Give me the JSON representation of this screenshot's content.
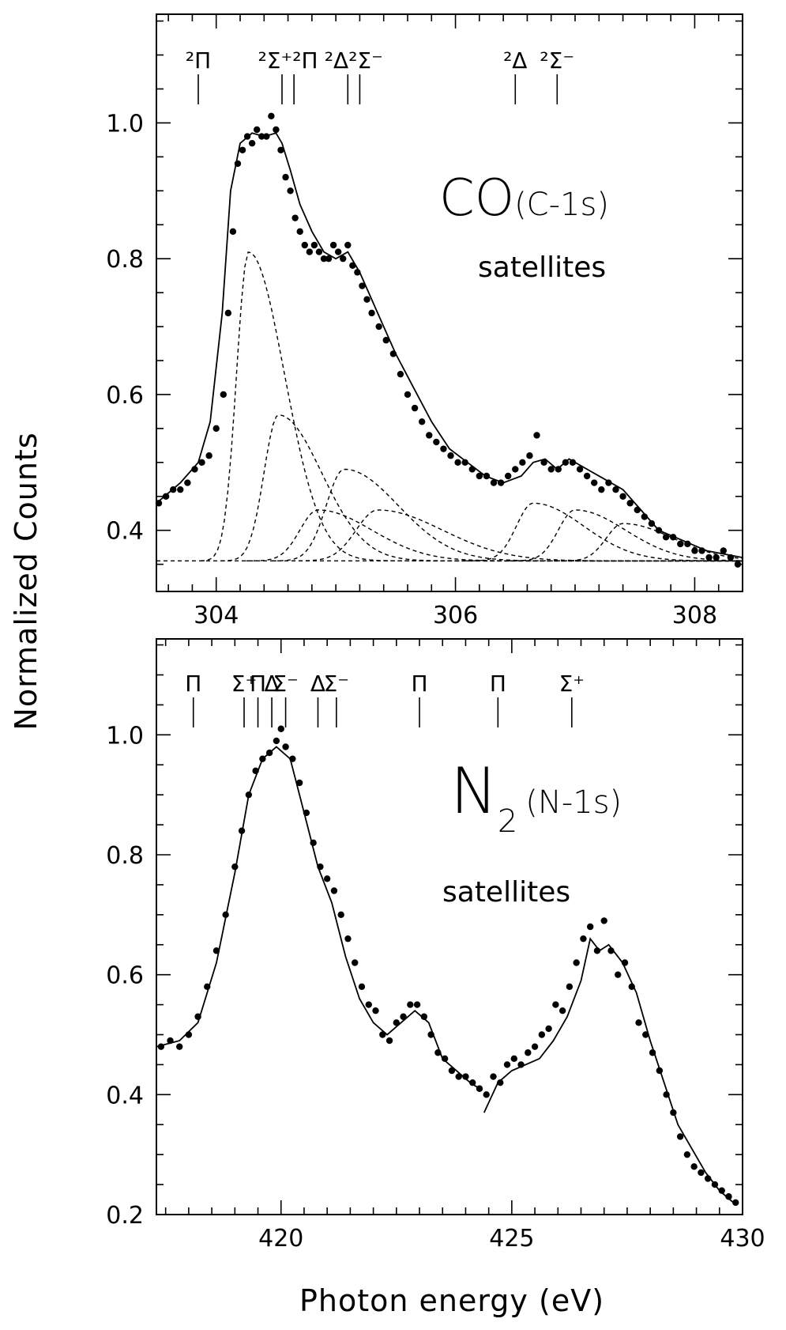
{
  "figure": {
    "ylabel": "Normalized Counts",
    "xlabel": "Photon energy (eV)"
  },
  "chart_data": [
    {
      "type": "scatter",
      "panel": "top",
      "molecule_main": "CO",
      "molecule_sub": "(C-1s)",
      "subtitle": "satellites",
      "xlim": [
        303.5,
        308.4
      ],
      "ylim": [
        0.31,
        1.16
      ],
      "xticks": [
        304,
        306,
        308
      ],
      "yticks": [
        0.4,
        0.6,
        0.8,
        1.0
      ],
      "baseline": 0.355,
      "state_markers": [
        {
          "label": "²Π",
          "x": 303.85
        },
        {
          "label": "²Σ⁺²Π",
          "x": [
            304.55,
            304.65
          ]
        },
        {
          "label": "²Δ²Σ⁻",
          "x": [
            305.1,
            305.2
          ]
        },
        {
          "label": "²Δ",
          "x": 306.5
        },
        {
          "label": "²Σ⁻",
          "x": 306.85
        }
      ],
      "fit_curve": {
        "x": [
          303.5,
          303.7,
          303.85,
          303.95,
          304.05,
          304.12,
          304.2,
          304.3,
          304.4,
          304.5,
          304.55,
          304.62,
          304.7,
          304.8,
          304.9,
          305.0,
          305.1,
          305.2,
          305.35,
          305.5,
          305.65,
          305.8,
          305.95,
          306.1,
          306.25,
          306.4,
          306.55,
          306.65,
          306.75,
          306.85,
          306.95,
          307.1,
          307.25,
          307.4,
          307.55,
          307.7,
          307.9,
          308.1,
          308.4
        ],
        "y": [
          0.44,
          0.47,
          0.5,
          0.56,
          0.72,
          0.9,
          0.97,
          0.985,
          0.98,
          0.985,
          0.97,
          0.93,
          0.88,
          0.84,
          0.81,
          0.8,
          0.81,
          0.78,
          0.72,
          0.66,
          0.61,
          0.56,
          0.52,
          0.5,
          0.48,
          0.47,
          0.48,
          0.5,
          0.505,
          0.49,
          0.505,
          0.49,
          0.475,
          0.46,
          0.43,
          0.4,
          0.385,
          0.37,
          0.36
        ]
      },
      "components": [
        {
          "center": 304.27,
          "peak": 0.81,
          "width": 0.1
        },
        {
          "center": 304.52,
          "peak": 0.57,
          "width": 0.12
        },
        {
          "center": 304.85,
          "peak": 0.43,
          "width": 0.15
        },
        {
          "center": 305.07,
          "peak": 0.49,
          "width": 0.15
        },
        {
          "center": 305.35,
          "peak": 0.43,
          "width": 0.18
        },
        {
          "center": 306.65,
          "peak": 0.44,
          "width": 0.14
        },
        {
          "center": 307.0,
          "peak": 0.43,
          "width": 0.14
        },
        {
          "center": 307.4,
          "peak": 0.41,
          "width": 0.14
        }
      ],
      "data_points": {
        "x": [
          303.52,
          303.58,
          303.64,
          303.7,
          303.76,
          303.82,
          303.88,
          303.94,
          304.0,
          304.06,
          304.1,
          304.14,
          304.18,
          304.22,
          304.26,
          304.3,
          304.34,
          304.38,
          304.42,
          304.46,
          304.5,
          304.54,
          304.58,
          304.62,
          304.66,
          304.7,
          304.74,
          304.78,
          304.82,
          304.86,
          304.9,
          304.94,
          304.98,
          305.02,
          305.06,
          305.1,
          305.14,
          305.18,
          305.22,
          305.26,
          305.3,
          305.36,
          305.42,
          305.48,
          305.54,
          305.6,
          305.66,
          305.72,
          305.78,
          305.84,
          305.9,
          305.96,
          306.02,
          306.08,
          306.14,
          306.2,
          306.26,
          306.32,
          306.38,
          306.44,
          306.5,
          306.56,
          306.62,
          306.68,
          306.74,
          306.8,
          306.86,
          306.92,
          306.98,
          307.04,
          307.1,
          307.16,
          307.22,
          307.28,
          307.34,
          307.4,
          307.46,
          307.52,
          307.58,
          307.64,
          307.7,
          307.76,
          307.82,
          307.88,
          307.94,
          308.0,
          308.06,
          308.12,
          308.18,
          308.24,
          308.3,
          308.36
        ],
        "y": [
          0.44,
          0.45,
          0.46,
          0.46,
          0.47,
          0.49,
          0.5,
          0.51,
          0.55,
          0.6,
          0.72,
          0.84,
          0.94,
          0.96,
          0.98,
          0.97,
          0.99,
          0.98,
          0.98,
          1.01,
          0.99,
          0.96,
          0.92,
          0.9,
          0.86,
          0.84,
          0.82,
          0.81,
          0.82,
          0.81,
          0.8,
          0.8,
          0.82,
          0.81,
          0.8,
          0.82,
          0.79,
          0.78,
          0.76,
          0.74,
          0.72,
          0.7,
          0.68,
          0.66,
          0.63,
          0.6,
          0.58,
          0.56,
          0.54,
          0.53,
          0.52,
          0.51,
          0.5,
          0.5,
          0.49,
          0.48,
          0.48,
          0.47,
          0.47,
          0.48,
          0.49,
          0.5,
          0.51,
          0.54,
          0.5,
          0.49,
          0.49,
          0.5,
          0.5,
          0.49,
          0.48,
          0.47,
          0.46,
          0.47,
          0.46,
          0.45,
          0.44,
          0.43,
          0.42,
          0.41,
          0.4,
          0.39,
          0.39,
          0.38,
          0.38,
          0.37,
          0.37,
          0.36,
          0.36,
          0.37,
          0.36,
          0.35
        ]
      }
    },
    {
      "type": "scatter",
      "panel": "bottom",
      "molecule_main": "N",
      "molecule_subscript": "2",
      "molecule_sub": "(N-1s)",
      "subtitle": "satellites",
      "xlim": [
        417.3,
        430
      ],
      "ylim": [
        0.2,
        1.16
      ],
      "xticks": [
        420,
        425,
        430
      ],
      "yticks": [
        0.2,
        0.4,
        0.6,
        0.8,
        1.0
      ],
      "state_markers": [
        {
          "label": "Π",
          "x": 418.1
        },
        {
          "label": "Σ⁺",
          "x": 419.2
        },
        {
          "label": "Π",
          "x": 419.5
        },
        {
          "label": "Δ",
          "x": 419.8
        },
        {
          "label": "Σ⁻",
          "x": 420.1
        },
        {
          "label": "Δ",
          "x": 420.8
        },
        {
          "label": "Σ⁻",
          "x": 421.2
        },
        {
          "label": "Π",
          "x": 423.0
        },
        {
          "label": "Π",
          "x": 424.7
        },
        {
          "label": "Σ⁺",
          "x": 426.3
        }
      ],
      "fit_curve": {
        "x": [
          417.3,
          417.8,
          418.2,
          418.6,
          419.0,
          419.3,
          419.6,
          419.9,
          420.2,
          420.5,
          420.8,
          421.1,
          421.4,
          421.7,
          422.0,
          422.3,
          422.6,
          422.9,
          423.2,
          423.5,
          423.8,
          424.1,
          424.3
        ],
        "y": [
          0.48,
          0.49,
          0.52,
          0.62,
          0.77,
          0.9,
          0.96,
          0.98,
          0.96,
          0.87,
          0.78,
          0.72,
          0.63,
          0.56,
          0.52,
          0.5,
          0.52,
          0.54,
          0.52,
          0.46,
          0.44,
          0.42,
          0.41
        ]
      },
      "fit_curve_2": {
        "x": [
          424.4,
          424.7,
          425.0,
          425.3,
          425.6,
          425.9,
          426.2,
          426.5,
          426.7,
          426.9,
          427.1,
          427.4,
          427.7,
          428.0,
          428.3,
          428.6,
          428.9,
          429.2,
          429.5,
          429.8
        ],
        "y": [
          0.37,
          0.42,
          0.44,
          0.45,
          0.46,
          0.49,
          0.53,
          0.59,
          0.66,
          0.64,
          0.65,
          0.62,
          0.57,
          0.49,
          0.42,
          0.35,
          0.31,
          0.27,
          0.24,
          0.22
        ]
      },
      "data_points": {
        "x": [
          417.4,
          417.6,
          417.8,
          418.0,
          418.2,
          418.4,
          418.6,
          418.8,
          419.0,
          419.15,
          419.3,
          419.45,
          419.6,
          419.75,
          419.9,
          420.0,
          420.1,
          420.25,
          420.4,
          420.55,
          420.7,
          420.85,
          421.0,
          421.15,
          421.3,
          421.45,
          421.6,
          421.75,
          421.9,
          422.05,
          422.2,
          422.35,
          422.5,
          422.65,
          422.8,
          422.95,
          423.1,
          423.25,
          423.4,
          423.55,
          423.7,
          423.85,
          424.0,
          424.15,
          424.3,
          424.45,
          424.6,
          424.75,
          424.9,
          425.05,
          425.2,
          425.35,
          425.5,
          425.65,
          425.8,
          425.95,
          426.1,
          426.25,
          426.4,
          426.55,
          426.7,
          426.85,
          427.0,
          427.15,
          427.3,
          427.45,
          427.6,
          427.75,
          427.9,
          428.05,
          428.2,
          428.35,
          428.5,
          428.65,
          428.8,
          428.95,
          429.1,
          429.25,
          429.4,
          429.55,
          429.7,
          429.85
        ],
        "y": [
          0.48,
          0.49,
          0.48,
          0.5,
          0.53,
          0.58,
          0.64,
          0.7,
          0.78,
          0.84,
          0.9,
          0.94,
          0.96,
          0.97,
          0.99,
          1.01,
          0.98,
          0.96,
          0.92,
          0.87,
          0.82,
          0.78,
          0.76,
          0.74,
          0.7,
          0.66,
          0.62,
          0.58,
          0.55,
          0.54,
          0.5,
          0.49,
          0.52,
          0.53,
          0.55,
          0.55,
          0.53,
          0.5,
          0.47,
          0.46,
          0.44,
          0.43,
          0.43,
          0.42,
          0.41,
          0.4,
          0.43,
          0.42,
          0.45,
          0.46,
          0.45,
          0.47,
          0.48,
          0.5,
          0.51,
          0.55,
          0.54,
          0.58,
          0.62,
          0.66,
          0.68,
          0.64,
          0.69,
          0.64,
          0.6,
          0.62,
          0.58,
          0.52,
          0.5,
          0.47,
          0.44,
          0.4,
          0.37,
          0.33,
          0.3,
          0.28,
          0.27,
          0.26,
          0.25,
          0.24,
          0.23,
          0.22
        ]
      }
    }
  ]
}
